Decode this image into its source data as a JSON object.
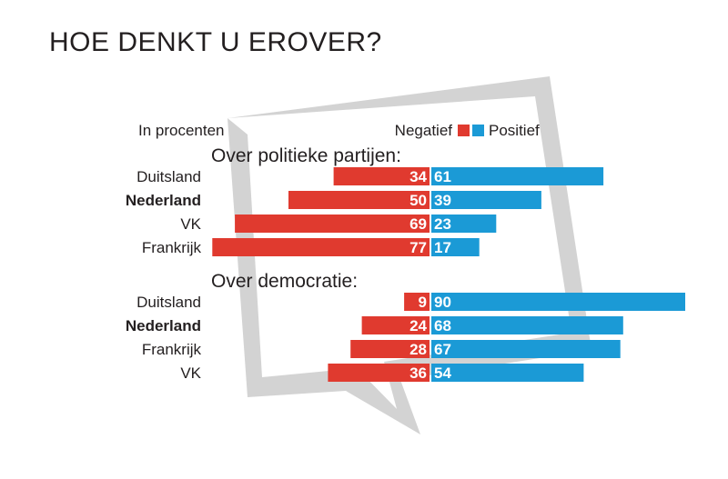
{
  "title": "HOE DENKT U EROVER?",
  "chart_data": {
    "type": "bar",
    "unit_label": "In procenten",
    "legend": {
      "negative_label": "Negatief",
      "positive_label": "Positief",
      "negative_color": "#e03a2f",
      "positive_color": "#1b9ad6"
    },
    "background_color": "#d3d3d3",
    "groups": [
      {
        "title": "Over politieke partijen:",
        "rows": [
          {
            "country": "Duitsland",
            "bold": false,
            "negative": 34,
            "positive": 61
          },
          {
            "country": "Nederland",
            "bold": true,
            "negative": 50,
            "positive": 39
          },
          {
            "country": "VK",
            "bold": false,
            "negative": 69,
            "positive": 23
          },
          {
            "country": "Frankrijk",
            "bold": false,
            "negative": 77,
            "positive": 17
          }
        ]
      },
      {
        "title": "Over democratie:",
        "rows": [
          {
            "country": "Duitsland",
            "bold": false,
            "negative": 9,
            "positive": 90
          },
          {
            "country": "Nederland",
            "bold": true,
            "negative": 24,
            "positive": 68
          },
          {
            "country": "Frankrijk",
            "bold": false,
            "negative": 28,
            "positive": 67
          },
          {
            "country": "VK",
            "bold": false,
            "negative": 36,
            "positive": 54
          }
        ]
      }
    ]
  }
}
